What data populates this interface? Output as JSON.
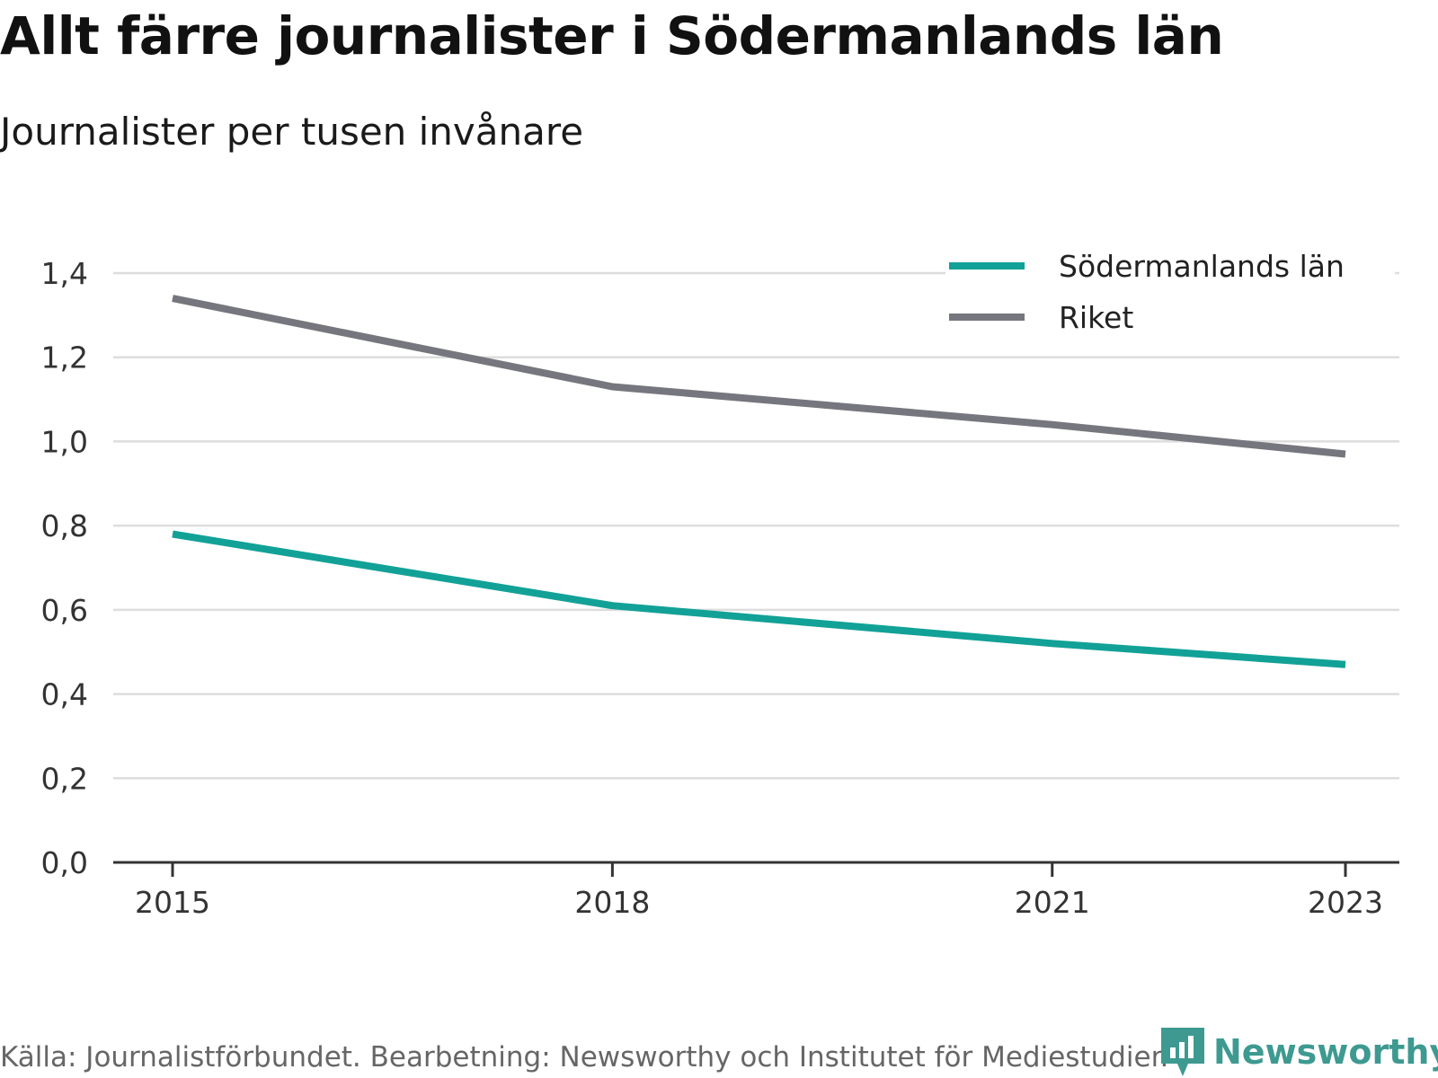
{
  "header": {
    "title": "Allt färre journalister i Södermanlands län",
    "subtitle": "Journalister per tusen invånare"
  },
  "footer": {
    "source": "Källa: Journalistförbundet. Bearbetning: Newsworthy och Institutet för Mediestudier.",
    "brand": "Newsworthy",
    "brand_icon": "newsworthy-logo-icon"
  },
  "colors": {
    "sodermanland": "#12a197",
    "riket": "#76767e",
    "grid": "#dddddd",
    "axis": "#333333",
    "brand": "#3e9a90"
  },
  "chart_data": {
    "type": "line",
    "title": "Allt färre journalister i Södermanlands län",
    "subtitle": "Journalister per tusen invånare",
    "xlabel": "",
    "ylabel": "",
    "x_ticks": [
      2015,
      2018,
      2021,
      2023
    ],
    "x_tick_labels": [
      "2015",
      "2018",
      "2021",
      "2023"
    ],
    "xlim": [
      2015,
      2023
    ],
    "ylim": [
      0,
      1.4
    ],
    "y_ticks": [
      0,
      0.2,
      0.4,
      0.6,
      0.8,
      1.0,
      1.2,
      1.4
    ],
    "y_tick_labels": [
      "0,0",
      "0,2",
      "0,4",
      "0,6",
      "0,8",
      "1,0",
      "1,2",
      "1,4"
    ],
    "grid": true,
    "legend_position": "top-right",
    "series": [
      {
        "name": "Södermanlands län",
        "color": "#12a197",
        "points": [
          {
            "x": 2015,
            "y": 0.78
          },
          {
            "x": 2018,
            "y": 0.61
          },
          {
            "x": 2021,
            "y": 0.52
          },
          {
            "x": 2023,
            "y": 0.47
          }
        ]
      },
      {
        "name": "Riket",
        "color": "#76767e",
        "points": [
          {
            "x": 2015,
            "y": 1.34
          },
          {
            "x": 2018,
            "y": 1.13
          },
          {
            "x": 2021,
            "y": 1.04
          },
          {
            "x": 2023,
            "y": 0.97
          }
        ]
      }
    ]
  }
}
